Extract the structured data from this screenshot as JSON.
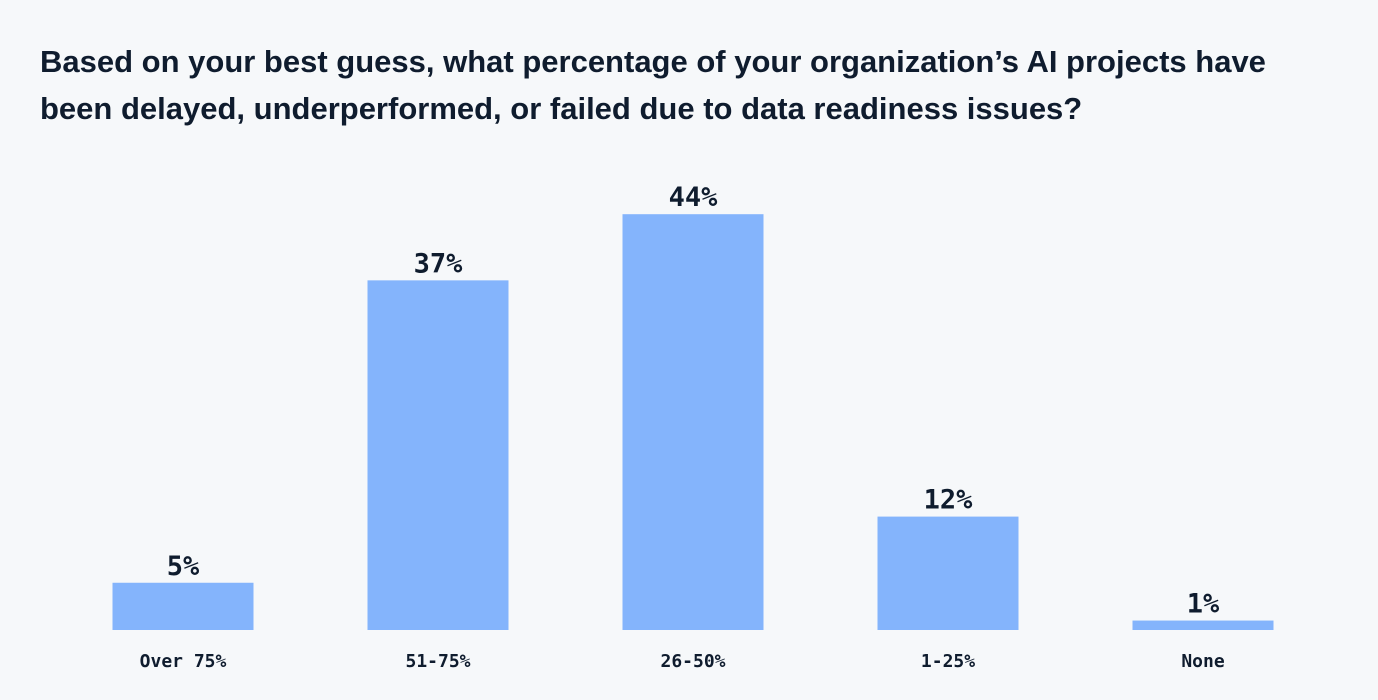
{
  "chart_data": {
    "type": "bar",
    "title": "Based on your best guess, what percentage of your organization’s AI projects have been delayed, underperformed, or failed due to data readiness issues?",
    "categories": [
      "Over 75%",
      "51-75%",
      "26-50%",
      "1-25%",
      "None"
    ],
    "values": [
      5,
      37,
      44,
      12,
      1
    ],
    "data_labels": [
      "5%",
      "37%",
      "44%",
      "12%",
      "1%"
    ],
    "xlabel": "",
    "ylabel": "",
    "ylim": [
      0,
      50
    ],
    "grid": false,
    "legend": "none",
    "bar_color": "#84b4fc"
  }
}
